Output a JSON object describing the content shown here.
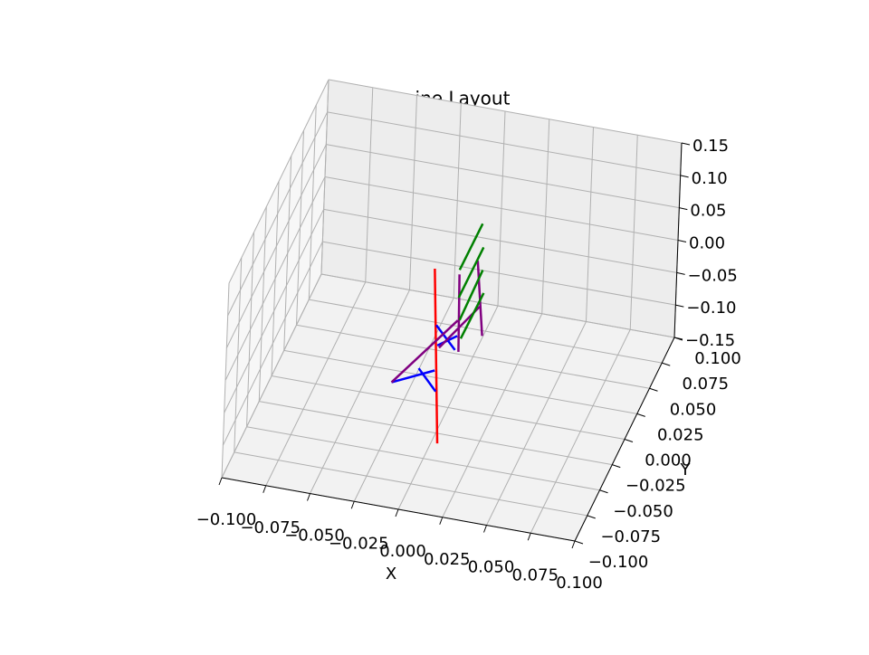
{
  "chart_data": {
    "type": "line3d",
    "title": "Engine Layout",
    "xlabel": "X",
    "ylabel": "Y",
    "xlim": [
      -0.1,
      0.1
    ],
    "ylim": [
      -0.1,
      0.1
    ],
    "zlim": [
      -0.15,
      0.15
    ],
    "xticks": [
      {
        "value": -0.1,
        "label": "−0.100"
      },
      {
        "value": -0.075,
        "label": "−0.075"
      },
      {
        "value": -0.05,
        "label": "−0.050"
      },
      {
        "value": -0.025,
        "label": "−0.025"
      },
      {
        "value": 0,
        "label": "0.000"
      },
      0.025,
      {
        "value": 0.05,
        "label": "0.050"
      },
      0.075,
      {
        "value": 0.1,
        "label": "0.100"
      }
    ],
    "yticks": [
      {
        "value": -0.1,
        "label": "−0.100"
      },
      {
        "value": -0.075,
        "label": "−0.075"
      },
      {
        "value": -0.05,
        "label": "−0.050"
      },
      {
        "value": -0.025,
        "label": "−0.025"
      },
      {
        "value": 0,
        "label": "0.000"
      },
      0.025,
      {
        "value": 0.05,
        "label": "0.050"
      },
      0.075,
      {
        "value": 0.1,
        "label": "0.100"
      }
    ],
    "zticks": [
      {
        "value": -0.15,
        "label": "−0.15"
      },
      {
        "value": -0.1,
        "label": "−0.10"
      },
      {
        "value": -0.05,
        "label": "−0.05"
      },
      {
        "value": 0,
        "label": "0.00"
      },
      0.05,
      {
        "value": 0.1,
        "label": "0.10"
      },
      0.15
    ],
    "grid": true,
    "series": [
      {
        "color": "#ff0000",
        "x": [
          0.005,
          0.0
        ],
        "y": [
          -0.04,
          -0.04
        ],
        "z": [
          -0.14,
          0.127
        ]
      },
      {
        "color": "#0000ff",
        "x": [
          0.002,
          0.013
        ],
        "y": [
          -0.04,
          -0.04
        ],
        "z": [
          0.041,
          0.008
        ]
      },
      {
        "color": "#0000ff",
        "x": [
          0.003,
          0.014
        ],
        "y": [
          -0.04,
          -0.04
        ],
        "z": [
          0.01,
          0.03
        ]
      },
      {
        "color": "#0000ff",
        "x": [
          -0.022,
          0.002
        ],
        "y": [
          -0.04,
          -0.04
        ],
        "z": [
          -0.059,
          -0.029
        ]
      },
      {
        "color": "#0000ff",
        "x": [
          -0.007,
          0.003
        ],
        "y": [
          -0.04,
          -0.04
        ],
        "z": [
          -0.03,
          -0.061
        ]
      },
      {
        "color": "#800080",
        "x": [
          -0.022,
          0.014
        ],
        "y": [
          -0.04,
          -0.04
        ],
        "z": [
          -0.059,
          0.054
        ]
      },
      {
        "color": "#800080",
        "x": [
          0.004,
          0.026
        ],
        "y": [
          -0.04,
          -0.04
        ],
        "z": [
          0.007,
          0.081
        ]
      },
      {
        "color": "#800080",
        "x": [
          0.014,
          0.015
        ],
        "y": [
          -0.04,
          -0.04
        ],
        "z": [
          0.125,
          0.006
        ]
      },
      {
        "color": "#800080",
        "x": [
          0.024,
          0.028
        ],
        "y": [
          -0.04,
          -0.04
        ],
        "z": [
          0.151,
          0.037
        ]
      },
      {
        "color": "#008000",
        "x": [
          0.014,
          0.026
        ],
        "y": [
          -0.04,
          -0.04
        ],
        "z": [
          0.132,
          0.209
        ]
      },
      {
        "color": "#008000",
        "x": [
          0.014,
          0.027
        ],
        "y": [
          -0.04,
          -0.04
        ],
        "z": [
          0.089,
          0.173
        ]
      },
      {
        "color": "#008000",
        "x": [
          0.015,
          0.027
        ],
        "y": [
          -0.04,
          -0.04
        ],
        "z": [
          0.055,
          0.138
        ]
      },
      {
        "color": "#008000",
        "x": [
          0.016,
          0.028
        ],
        "y": [
          -0.04,
          -0.04
        ],
        "z": [
          0.027,
          0.103
        ]
      }
    ]
  }
}
